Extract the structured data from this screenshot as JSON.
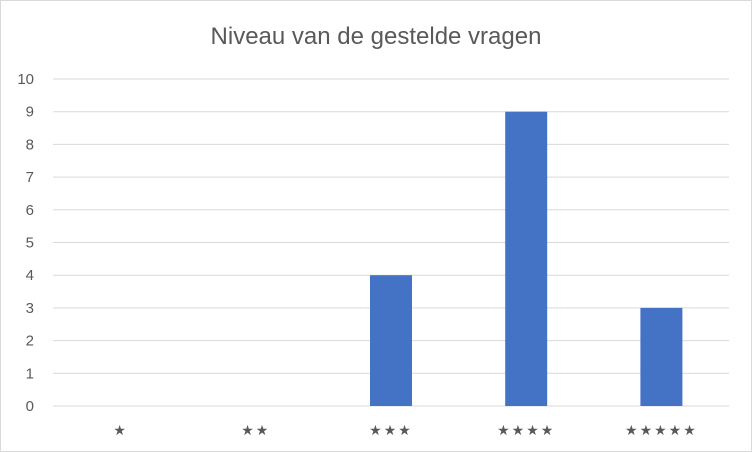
{
  "chart_data": {
    "type": "bar",
    "title": "Niveau van de gestelde vragen",
    "categories": [
      "★",
      "★★",
      "★★★",
      "★★★★",
      "★★★★★"
    ],
    "values": [
      0,
      0,
      4,
      9,
      3
    ],
    "xlabel": "",
    "ylabel": "",
    "ylim": [
      0,
      10
    ],
    "yticks": [
      0,
      1,
      2,
      3,
      4,
      5,
      6,
      7,
      8,
      9,
      10
    ],
    "grid": true,
    "legend": "none",
    "bar_color": "#4472c4",
    "grid_color": "#d9d9d9",
    "text_color": "#595959"
  }
}
